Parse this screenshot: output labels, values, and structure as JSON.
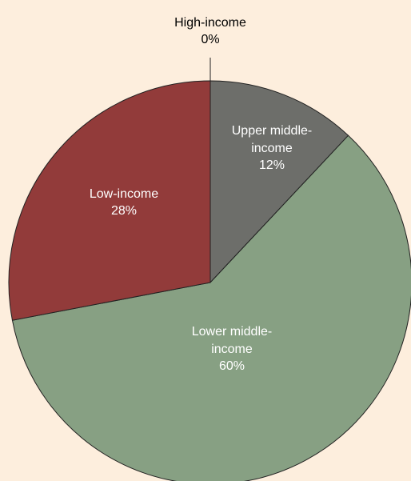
{
  "chart_data": {
    "type": "pie",
    "categories": [
      "High-income",
      "Upper middle-income",
      "Lower middle-income",
      "Low-income"
    ],
    "values": [
      0,
      12,
      60,
      28
    ],
    "value_labels": [
      "0%",
      "12%",
      "60%",
      "28%"
    ],
    "colors": [
      "#b5b5b5",
      "#6d6e6a",
      "#87a083",
      "#923b3a"
    ]
  }
}
